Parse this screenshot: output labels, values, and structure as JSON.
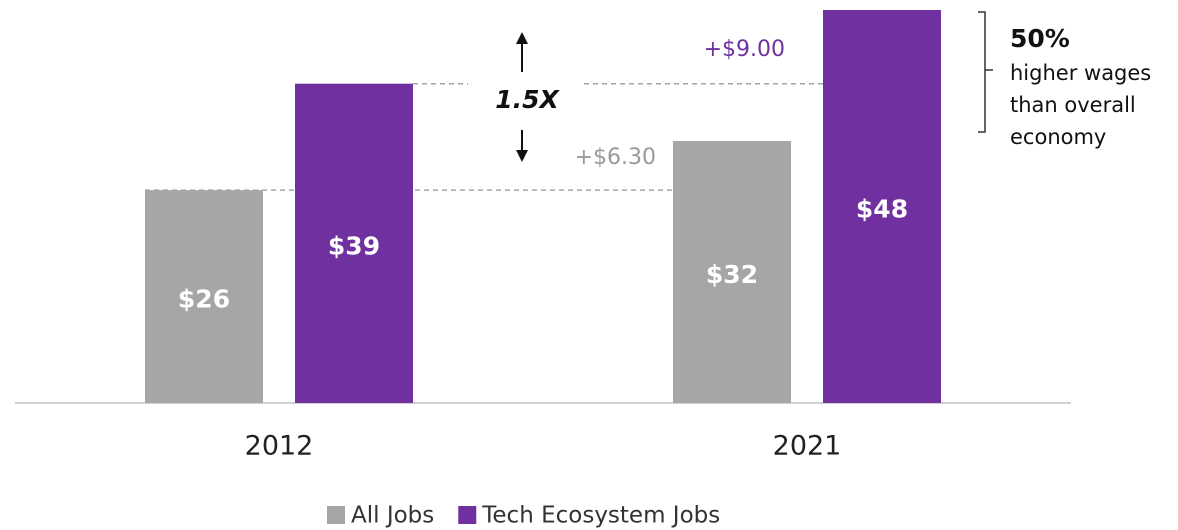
{
  "chart_data": {
    "type": "bar",
    "categories": [
      "2012",
      "2021"
    ],
    "series": [
      {
        "name": "All Jobs",
        "color": "#a6a6a6",
        "values": [
          26,
          32
        ],
        "value_labels": [
          "$26",
          "$32"
        ]
      },
      {
        "name": "Tech Ecosystem Jobs",
        "color": "#7030a0",
        "values": [
          39,
          48
        ],
        "value_labels": [
          "$39",
          "$48"
        ]
      }
    ],
    "ylim": [
      0,
      48
    ],
    "annotations": {
      "tech_gain": "+$9.00",
      "all_gain": "+$6.30",
      "ratio": "1.5X",
      "premium": "50%",
      "premium_text": [
        "higher wages",
        "than overall",
        "economy"
      ]
    },
    "legend": "bottom"
  }
}
